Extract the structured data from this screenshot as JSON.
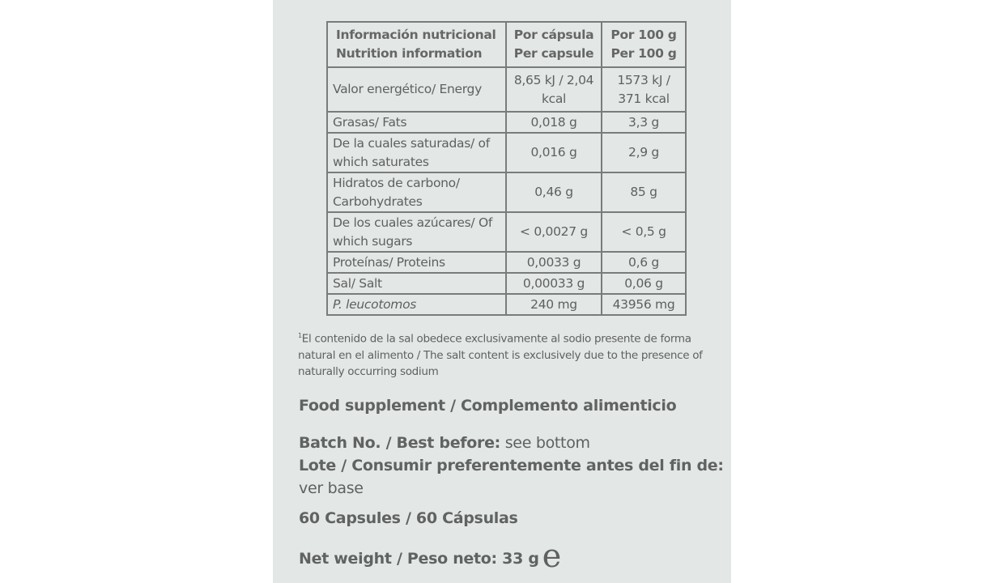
{
  "table": {
    "header": {
      "label_es": "Información nutricional",
      "label_en": "Nutrition information",
      "col1_es": "Por cápsula",
      "col1_en": "Per capsule",
      "col2_es": "Por 100 g",
      "col2_en": "Per 100 g"
    },
    "rows": [
      {
        "label": "Valor energético/ Energy",
        "per_capsule": "8,65 kJ / 2,04 kcal",
        "per_100g": "1573 kJ / 371 kcal"
      },
      {
        "label": "Grasas/ Fats",
        "per_capsule": "0,018 g",
        "per_100g": "3,3 g"
      },
      {
        "label": "De la cuales saturadas/ of which saturates",
        "per_capsule": "0,016 g",
        "per_100g": "2,9 g"
      },
      {
        "label": "Hidratos de carbono/ Carbohydrates",
        "per_capsule": "0,46 g",
        "per_100g": "85 g"
      },
      {
        "label": "De los cuales azúcares/ Of which sugars",
        "per_capsule": "< 0,0027 g",
        "per_100g": "< 0,5 g"
      },
      {
        "label": "Proteínas/ Proteins",
        "per_capsule": "0,0033 g",
        "per_100g": "0,6 g"
      },
      {
        "label": "Sal/ Salt",
        "per_capsule": "0,00033 g",
        "per_100g": "0,06 g"
      },
      {
        "label": "P. leucotomos",
        "per_capsule": "240 mg",
        "per_100g": "43956 mg"
      }
    ]
  },
  "footnote": {
    "marker": "1",
    "text": "El contenido de la sal obedece exclusivamente al sodio presente de forma natural en el alimento / The salt content is exclusively due to the presence of naturally occurring sodium"
  },
  "supplement": "Food supplement / Complemento alimenticio",
  "batch": {
    "label_en": "Batch No. / Best before:",
    "value_en": " see bottom",
    "label_es": "Lote / Consumir preferentemente antes del fin de:",
    "value_es": "ver base"
  },
  "capsules": "60 Capsules / 60 Cápsulas",
  "net_weight": "Net weight / Peso neto: 33 g",
  "estimated_mark": "e"
}
